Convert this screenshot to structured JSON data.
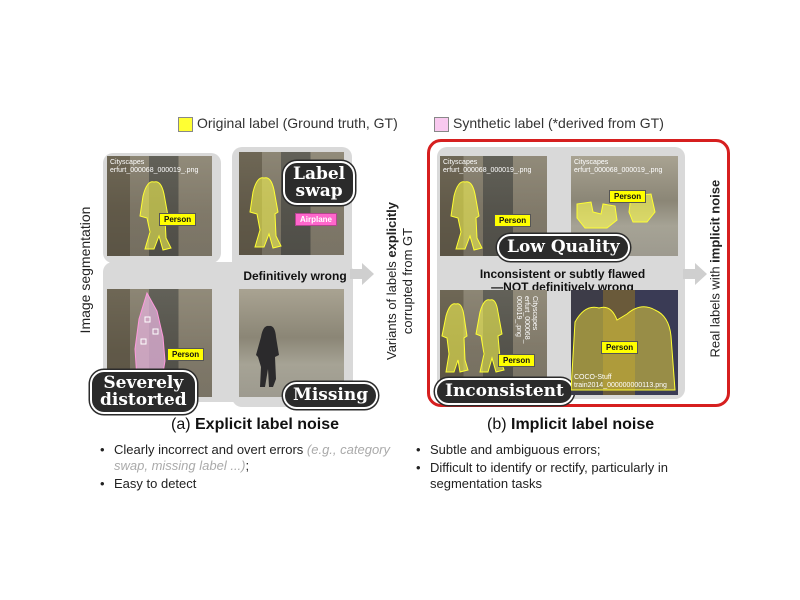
{
  "legend": {
    "original": "Original label (Ground truth, GT)",
    "synthetic": "Synthetic label (*derived from GT)",
    "colors": {
      "original": "#ffff33",
      "synthetic": "#f9c9ef"
    }
  },
  "left_axis": "Image segmentation",
  "mid_axis": {
    "line1_pre": "Variants of labels ",
    "line1_bold": "explicitly",
    "line2": "corrupted from GT"
  },
  "right_axis": {
    "pre": "Real labels with ",
    "bold": "implicit noise"
  },
  "tiles": {
    "cityscapes_caption": "Cityscapes\nerfurt_000068_000019_.png",
    "coco_caption": "COCO-Stuff\ntrain2014_000000000113.png",
    "vertical_caption": "Cityscapes\nerfurt_000068_\n000019_.png",
    "person": "Person",
    "airplane": "Airplane"
  },
  "bubbles": {
    "label_swap": "Label\nswap",
    "severely_distorted": "Severely\ndistorted",
    "missing": "Missing",
    "low_quality": "Low Quality",
    "inconsistent": "Inconsistent"
  },
  "middle_text": {
    "explicit": "Definitively wrong",
    "implicit_line1": "Inconsistent or subtly flawed",
    "implicit_line2": "—NOT definitively wrong"
  },
  "section_a": {
    "title_prefix": "(a) ",
    "title_bold": "Explicit label noise",
    "bullet1_pre": "Clearly incorrect and overt errors ",
    "bullet1_muted": "(e.g., category swap, missing label ...)",
    "bullet1_post": ";",
    "bullet2": "Easy to detect"
  },
  "section_b": {
    "title_prefix": "(b) ",
    "title_bold": "Implicit label noise",
    "bullet1": "Subtle and ambiguous errors;",
    "bullet2": "Difficult to identify or rectify, particularly in segmentation tasks"
  }
}
